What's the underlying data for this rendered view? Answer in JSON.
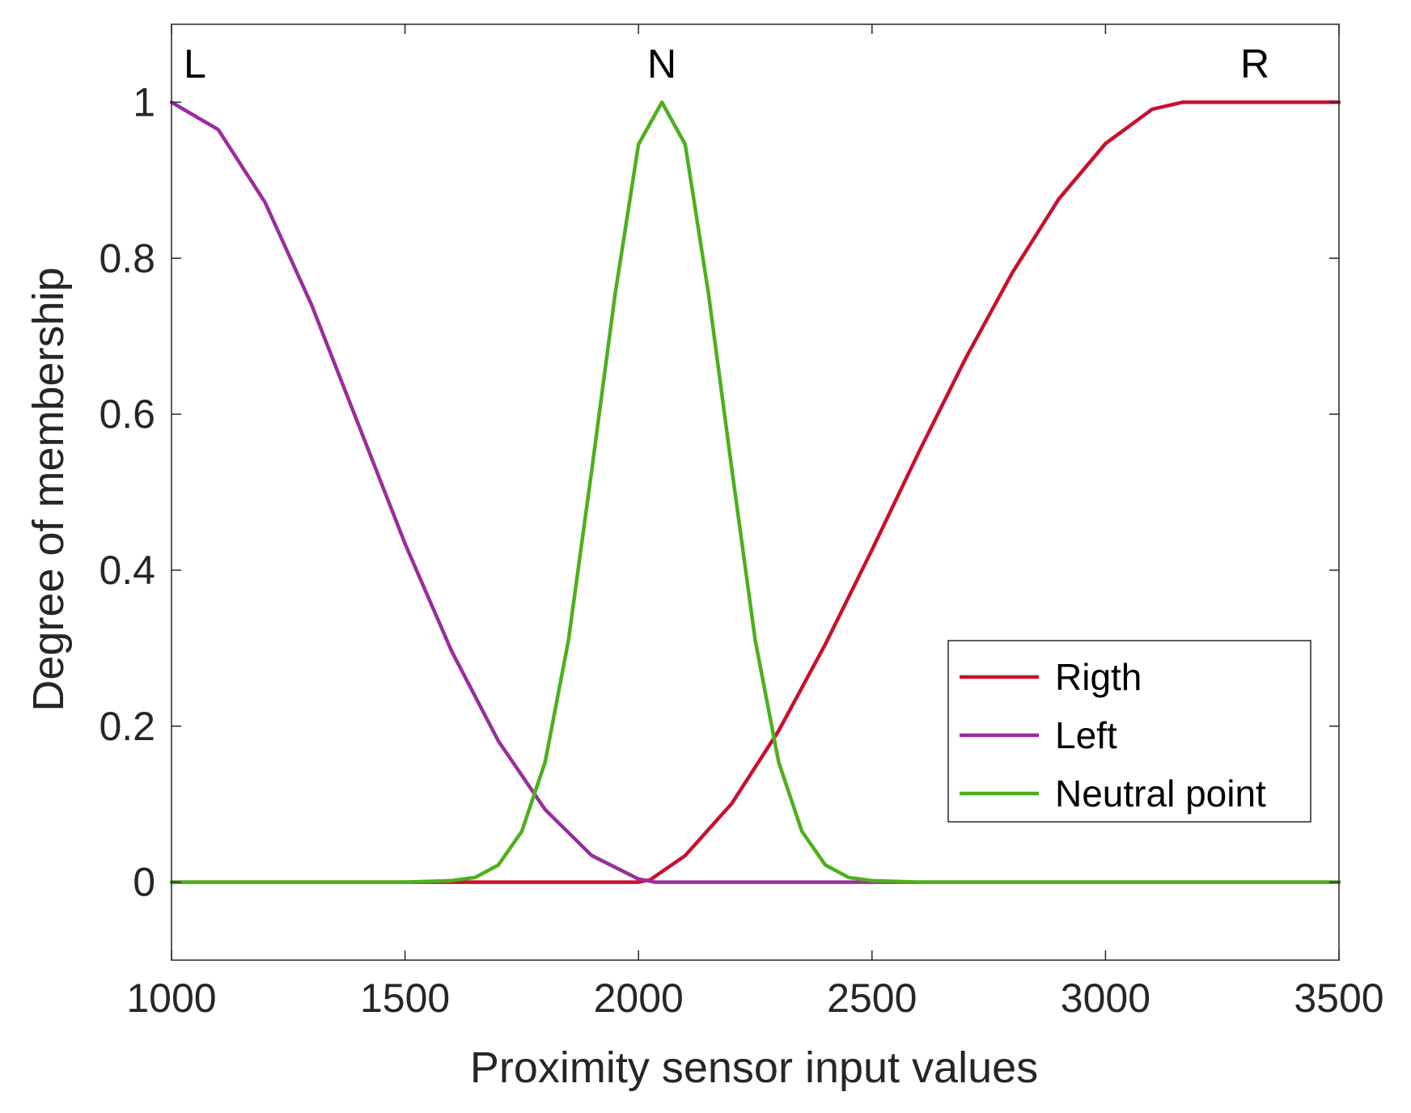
{
  "chart_data": {
    "type": "line",
    "title": "",
    "xlabel": "Proximity sensor input values",
    "ylabel": "Degree of membership",
    "xlim": [
      1000,
      3500
    ],
    "ylim": [
      -0.1,
      1.1
    ],
    "xticks": [
      1000,
      1500,
      2000,
      2500,
      3000,
      3500
    ],
    "xtick_labels": [
      "1000",
      "1500",
      "2000",
      "2500",
      "3000",
      "3500"
    ],
    "yticks": [
      0,
      0.2,
      0.4,
      0.6,
      0.8,
      1
    ],
    "ytick_labels": [
      "0",
      "0.2",
      "0.4",
      "0.6",
      "0.8",
      "1"
    ],
    "grid": false,
    "legend_position": "bottom-right",
    "annotations": [
      {
        "text": "L",
        "x": 1050,
        "y": 1.05
      },
      {
        "text": "N",
        "x": 2050,
        "y": 1.05
      },
      {
        "text": "R",
        "x": 3320,
        "y": 1.05
      }
    ],
    "series": [
      {
        "name": "Rigth",
        "color": "#C8102E",
        "x": [
          1000,
          1600,
          2000,
          2025,
          2100,
          2200,
          2300,
          2400,
          2500,
          2600,
          2700,
          2800,
          2900,
          3000,
          3100,
          3165,
          3500
        ],
        "y": [
          0,
          0,
          0,
          0.003,
          0.034,
          0.101,
          0.194,
          0.305,
          0.426,
          0.551,
          0.671,
          0.781,
          0.876,
          0.947,
          0.991,
          1.0,
          1.0
        ]
      },
      {
        "name": "Left",
        "color": "#9B2D9B",
        "x": [
          1000,
          1100,
          1200,
          1300,
          1400,
          1500,
          1600,
          1700,
          1800,
          1900,
          2000,
          2035,
          3500
        ],
        "y": [
          1.0,
          0.965,
          0.872,
          0.74,
          0.587,
          0.434,
          0.296,
          0.181,
          0.093,
          0.034,
          0.004,
          0,
          0
        ]
      },
      {
        "name": "Neutral point",
        "color": "#4CB01C",
        "x": [
          1000,
          1500,
          1600,
          1650,
          1700,
          1750,
          1800,
          1850,
          1900,
          1950,
          2000,
          2050,
          2100,
          2150,
          2200,
          2250,
          2300,
          2350,
          2400,
          2450,
          2500,
          2600,
          3500
        ],
        "y": [
          0,
          0,
          0.002,
          0.006,
          0.022,
          0.065,
          0.154,
          0.31,
          0.529,
          0.754,
          0.946,
          1.0,
          0.946,
          0.754,
          0.529,
          0.31,
          0.154,
          0.065,
          0.022,
          0.006,
          0.002,
          0,
          0
        ]
      }
    ]
  }
}
